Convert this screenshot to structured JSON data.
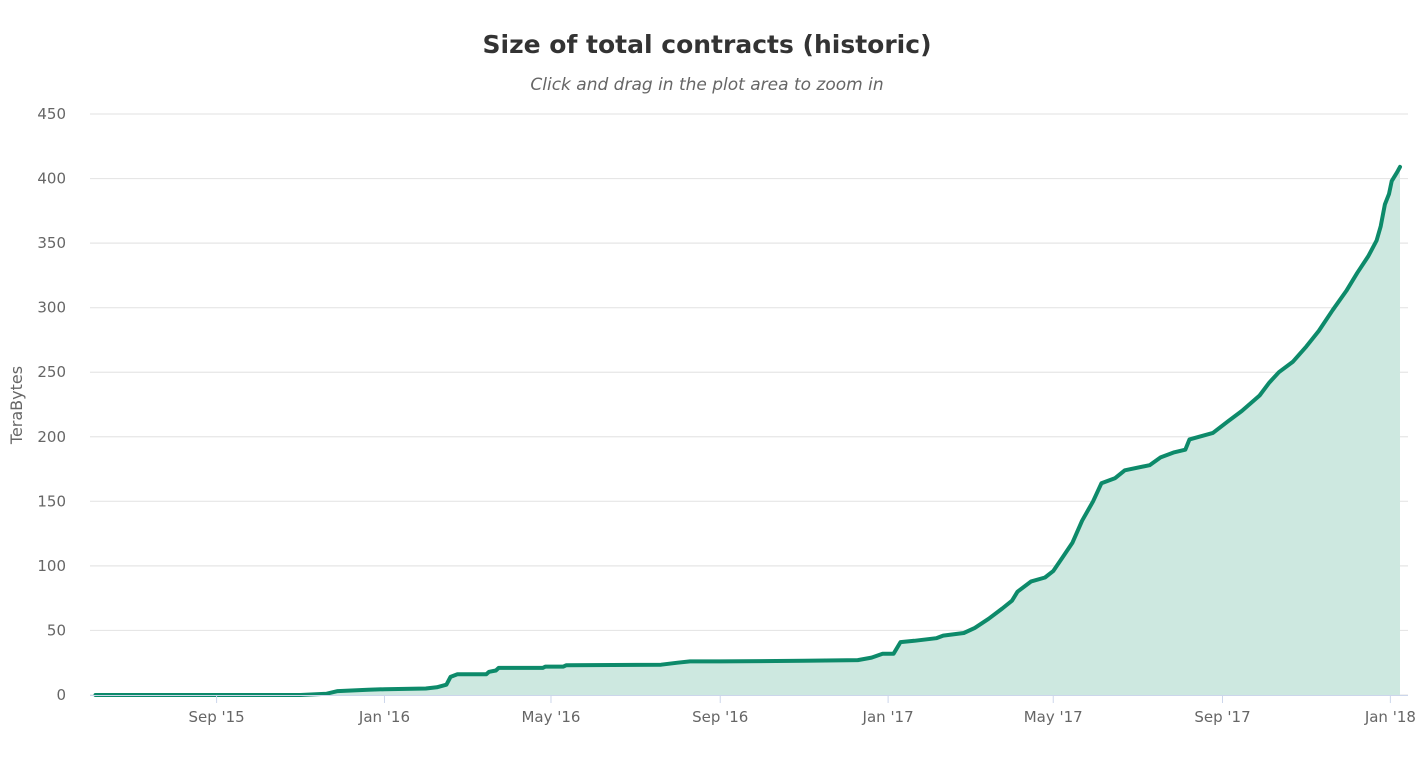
{
  "chart_data": {
    "type": "area",
    "title": "Size of total contracts (historic)",
    "subtitle": "Click and drag in the plot area to zoom in",
    "xlabel": "",
    "ylabel": "TeraBytes",
    "ylim": [
      0,
      450
    ],
    "y_ticks": [
      "0",
      "50",
      "100",
      "150",
      "200",
      "250",
      "300",
      "350",
      "400",
      "450"
    ],
    "x_ticks": [
      {
        "label": "Sep '15",
        "date": "2015-09-01"
      },
      {
        "label": "Jan '16",
        "date": "2016-01-01"
      },
      {
        "label": "May '16",
        "date": "2016-05-01"
      },
      {
        "label": "Sep '16",
        "date": "2016-09-01"
      },
      {
        "label": "Jan '17",
        "date": "2017-01-01"
      },
      {
        "label": "May '17",
        "date": "2017-05-01"
      },
      {
        "label": "Sep '17",
        "date": "2017-09-01"
      },
      {
        "label": "Jan '18",
        "date": "2018-01-01"
      }
    ],
    "xlim": [
      "2015-06-01",
      "2018-01-08"
    ],
    "grid": true,
    "legend": "none",
    "colors": {
      "line": "#0d8a6a",
      "fill": "#cde8e0",
      "grid": "#e6e6e6",
      "text": "#666666"
    },
    "series": [
      {
        "points": [
          [
            "2015-06-05",
            0
          ],
          [
            "2015-09-01",
            0
          ],
          [
            "2015-11-01",
            0
          ],
          [
            "2015-11-20",
            1
          ],
          [
            "2015-11-28",
            3
          ],
          [
            "2015-12-20",
            4
          ],
          [
            "2016-01-01",
            4.5
          ],
          [
            "2016-01-31",
            5
          ],
          [
            "2016-02-08",
            6
          ],
          [
            "2016-02-15",
            8
          ],
          [
            "2016-02-18",
            14
          ],
          [
            "2016-02-23",
            16
          ],
          [
            "2016-03-15",
            16
          ],
          [
            "2016-03-17",
            18
          ],
          [
            "2016-03-22",
            19
          ],
          [
            "2016-03-24",
            21
          ],
          [
            "2016-04-25",
            21
          ],
          [
            "2016-04-27",
            22
          ],
          [
            "2016-05-10",
            22
          ],
          [
            "2016-05-12",
            23
          ],
          [
            "2016-07-20",
            23.5
          ],
          [
            "2016-08-01",
            25
          ],
          [
            "2016-08-10",
            26
          ],
          [
            "2016-09-01",
            26
          ],
          [
            "2016-11-01",
            26.5
          ],
          [
            "2016-12-10",
            27
          ],
          [
            "2016-12-20",
            29
          ],
          [
            "2016-12-28",
            32
          ],
          [
            "2017-01-05",
            32
          ],
          [
            "2017-01-10",
            41
          ],
          [
            "2017-01-20",
            42
          ],
          [
            "2017-02-05",
            44
          ],
          [
            "2017-02-10",
            46
          ],
          [
            "2017-02-25",
            48
          ],
          [
            "2017-03-05",
            52
          ],
          [
            "2017-03-15",
            59
          ],
          [
            "2017-03-25",
            67
          ],
          [
            "2017-04-01",
            73
          ],
          [
            "2017-04-05",
            80
          ],
          [
            "2017-04-15",
            88
          ],
          [
            "2017-04-25",
            91
          ],
          [
            "2017-05-01",
            96
          ],
          [
            "2017-05-08",
            107
          ],
          [
            "2017-05-15",
            118
          ],
          [
            "2017-05-22",
            135
          ],
          [
            "2017-05-30",
            150
          ],
          [
            "2017-06-05",
            164
          ],
          [
            "2017-06-15",
            168
          ],
          [
            "2017-06-22",
            174
          ],
          [
            "2017-07-10",
            178
          ],
          [
            "2017-07-18",
            184
          ],
          [
            "2017-07-28",
            188
          ],
          [
            "2017-08-05",
            190
          ],
          [
            "2017-08-08",
            198
          ],
          [
            "2017-08-25",
            203
          ],
          [
            "2017-09-05",
            212
          ],
          [
            "2017-09-15",
            220
          ],
          [
            "2017-09-28",
            232
          ],
          [
            "2017-10-05",
            242
          ],
          [
            "2017-10-12",
            250
          ],
          [
            "2017-10-22",
            258
          ],
          [
            "2017-11-01",
            270
          ],
          [
            "2017-11-10",
            282
          ],
          [
            "2017-11-20",
            298
          ],
          [
            "2017-11-30",
            313
          ],
          [
            "2017-12-08",
            327
          ],
          [
            "2017-12-16",
            340
          ],
          [
            "2017-12-22",
            352
          ],
          [
            "2017-12-25",
            363
          ],
          [
            "2017-12-28",
            380
          ],
          [
            "2017-12-31",
            388
          ],
          [
            "2018-01-02",
            398
          ],
          [
            "2018-01-06",
            405
          ],
          [
            "2018-01-08",
            409
          ]
        ]
      }
    ]
  }
}
